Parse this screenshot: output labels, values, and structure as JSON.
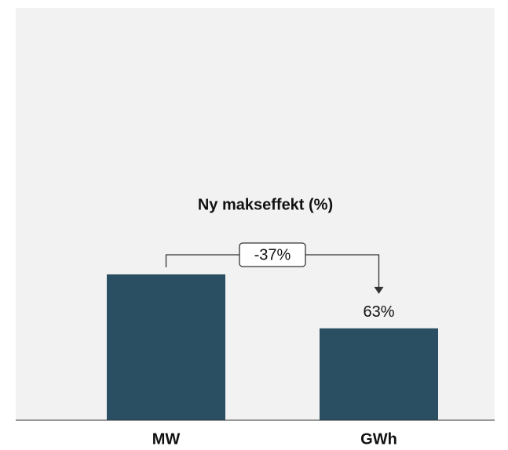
{
  "chart_data": {
    "type": "bar",
    "title": "Ny makseffekt (%)",
    "categories": [
      "MW",
      "GWh"
    ],
    "values": [
      100,
      63
    ],
    "value_labels": [
      null,
      "63%"
    ],
    "color": "#2b4f62",
    "ylim": [
      0,
      100
    ],
    "annotation": "-37%"
  }
}
